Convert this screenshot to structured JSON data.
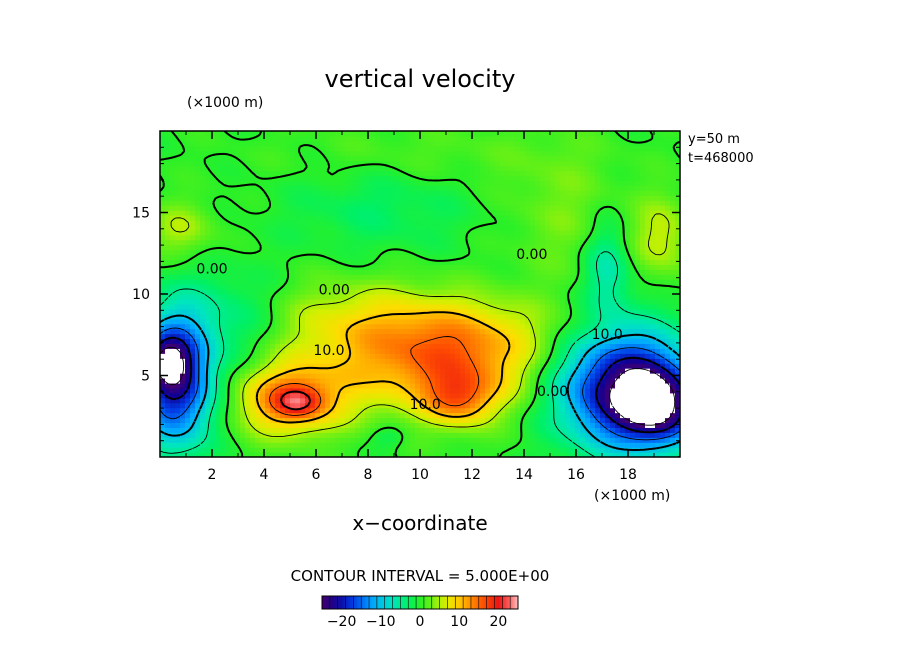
{
  "chart_data": {
    "type": "heatmap",
    "title": "vertical velocity",
    "xlabel": "x−coordinate",
    "x_unit": "(×1000 m)",
    "y_unit": "(×1000 m)",
    "xlim": [
      0,
      20
    ],
    "ylim": [
      0,
      20
    ],
    "x_ticks": [
      2,
      4,
      6,
      8,
      10,
      12,
      14,
      16,
      18
    ],
    "y_ticks": [
      5,
      10,
      15
    ],
    "x_tick_labels": [
      "2",
      "4",
      "6",
      "8",
      "10",
      "12",
      "14",
      "16",
      "18"
    ],
    "y_tick_labels": [
      "5",
      "10",
      "15"
    ],
    "annotations": [
      "y=50  m",
      "t=468000"
    ],
    "contour_interval_text": "CONTOUR INTERVAL = 5.000E+00",
    "contour_interval": 5,
    "contour_labels": [
      {
        "text": "0.00",
        "x": 2.0,
        "y": 11.5
      },
      {
        "text": "0.00",
        "x": 6.7,
        "y": 10.2
      },
      {
        "text": "0.00",
        "x": 14.3,
        "y": 12.4
      },
      {
        "text": "10.0",
        "x": 6.5,
        "y": 6.5
      },
      {
        "text": "10.0",
        "x": 10.2,
        "y": 3.2
      },
      {
        "text": "0.00",
        "x": 15.1,
        "y": 4.0
      },
      {
        "text": "10.0",
        "x": 17.2,
        "y": 7.5
      }
    ],
    "colorbar": {
      "min": -25,
      "max": 25,
      "ticks": [
        -20,
        -10,
        0,
        10,
        20
      ],
      "tick_labels": [
        "−20",
        "−10",
        "0",
        "10",
        "20"
      ]
    },
    "grid": false,
    "features": [
      {
        "x": 5.0,
        "y": 3.5,
        "amp": 14,
        "sx": 1.4,
        "sy": 1.5
      },
      {
        "x": 5.3,
        "y": 3.4,
        "amp": 8,
        "sx": 0.6,
        "sy": 0.6
      },
      {
        "x": 11.8,
        "y": 5.5,
        "amp": 10,
        "sx": 2.0,
        "sy": 2.0
      },
      {
        "x": 11.5,
        "y": 3.5,
        "amp": 9,
        "sx": 0.9,
        "sy": 1.1
      },
      {
        "x": 8.5,
        "y": 5.5,
        "amp": 7,
        "sx": 2.5,
        "sy": 2.0
      },
      {
        "x": 10.0,
        "y": 7.8,
        "amp": 6,
        "sx": 4.0,
        "sy": 1.5
      },
      {
        "x": 8.0,
        "y": 9.5,
        "amp": 3,
        "sx": 3.0,
        "sy": 1.5
      },
      {
        "x": 0.6,
        "y": 4.8,
        "amp": -22,
        "sx": 1.0,
        "sy": 2.8
      },
      {
        "x": 0.2,
        "y": 6.0,
        "amp": -10,
        "sx": 0.6,
        "sy": 1.0
      },
      {
        "x": 18.0,
        "y": 4.2,
        "amp": -25,
        "sx": 1.8,
        "sy": 2.5
      },
      {
        "x": 19.2,
        "y": 3.0,
        "amp": -14,
        "sx": 1.0,
        "sy": 1.5
      },
      {
        "x": 17.2,
        "y": 11.5,
        "amp": -7,
        "sx": 0.6,
        "sy": 2.0
      },
      {
        "x": 0.8,
        "y": 14.0,
        "amp": 5,
        "sx": 0.9,
        "sy": 1.2
      },
      {
        "x": 19.3,
        "y": 13.5,
        "amp": 6,
        "sx": 0.8,
        "sy": 1.8
      },
      {
        "x": 8.5,
        "y": 15.5,
        "amp": -3,
        "sx": 2.5,
        "sy": 2.0
      },
      {
        "x": 15.5,
        "y": 15.0,
        "amp": 3,
        "sx": 1.5,
        "sy": 3.0
      },
      {
        "x": 10.0,
        "y": 18.5,
        "amp": 2,
        "sx": 4.0,
        "sy": 1.5
      },
      {
        "x": 2.8,
        "y": 8.5,
        "amp": -5,
        "sx": 1.5,
        "sy": 2.0
      },
      {
        "x": 8.8,
        "y": 1.3,
        "amp": -3,
        "sx": 0.5,
        "sy": 0.5
      }
    ]
  }
}
